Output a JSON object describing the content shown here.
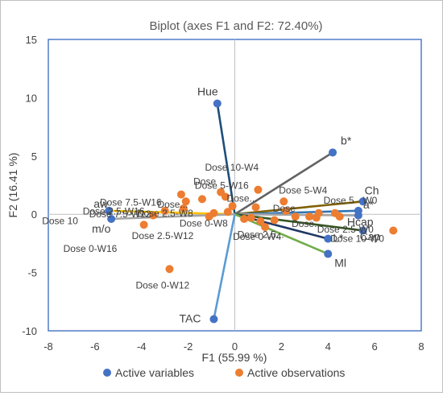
{
  "chart_data": {
    "type": "scatter",
    "title": "Biplot (axes F1 and F2: 72.40%)",
    "xlabel": "F1 (55.99 %)",
    "ylabel": "F2 (16.41 %)",
    "xlim": [
      -8,
      8
    ],
    "ylim": [
      -10,
      15
    ],
    "xticks": [
      -8,
      -6,
      -4,
      -2,
      0,
      2,
      4,
      6,
      8
    ],
    "yticks": [
      -10,
      -5,
      0,
      5,
      10,
      15
    ],
    "legend": {
      "placement": "bottom",
      "entries": [
        "Active variables",
        "Active observations"
      ]
    },
    "colors": {
      "variable_point": "#4472c4",
      "observation_point": "#ed7d31",
      "axis_frame": "#4472c4"
    },
    "variables": [
      {
        "label": "Hue",
        "x": -0.75,
        "y": 9.5,
        "color": "#1f4e79"
      },
      {
        "label": "b*",
        "x": 4.2,
        "y": 5.3,
        "color": "#636363"
      },
      {
        "label": "Ch",
        "x": 5.5,
        "y": 1.1,
        "color": "#7f6000"
      },
      {
        "label": "a*",
        "x": 5.3,
        "y": 0.3,
        "color": "#2e75b6"
      },
      {
        "label": "Hcap",
        "x": 5.3,
        "y": -0.1,
        "color": "#a5a5a5"
      },
      {
        "label": "Cap",
        "x": 5.5,
        "y": -1.4,
        "color": "#375623"
      },
      {
        "label": "L*",
        "x": 4.0,
        "y": -2.1,
        "color": "#203864"
      },
      {
        "label": "Ml",
        "x": 4.0,
        "y": -3.4,
        "color": "#70ad47"
      },
      {
        "label": "TAC",
        "x": -0.9,
        "y": -9.0,
        "color": "#5b9bd5"
      },
      {
        "label": "aw",
        "x": -5.4,
        "y": 0.3,
        "color": "#ffc000"
      },
      {
        "label": "m/o",
        "x": -5.3,
        "y": -0.4,
        "color": "#a5a5a5"
      }
    ],
    "observations": [
      {
        "label": "Dose 7.5-W16",
        "x": -2.3,
        "y": 1.7
      },
      {
        "label": "Dose 2.5-W16",
        "x": -2.1,
        "y": 1.1
      },
      {
        "label": "Dose 10",
        "x": -3.5,
        "y": -0.1
      },
      {
        "label": "Dose 7.5-W12",
        "x": -3.0,
        "y": 0.3
      },
      {
        "label": "Dose 0-W16",
        "x": -3.9,
        "y": -0.9
      },
      {
        "label": "Dose 2.5-W8",
        "x": -2.2,
        "y": 0.5
      },
      {
        "label": "Dose 2.5-W12",
        "x": -1.1,
        "y": -0.2
      },
      {
        "label": "Dose...",
        "x": -0.9,
        "y": 0.1
      },
      {
        "label": "Dose 0-W8",
        "x": -0.3,
        "y": 0.2
      },
      {
        "label": "Dose",
        "x": -0.6,
        "y": 1.9
      },
      {
        "label": "Dose 5-W16",
        "x": -0.4,
        "y": 1.5
      },
      {
        "label": "Dose 10-W4",
        "x": 1.0,
        "y": 2.1
      },
      {
        "label": "Dose...",
        "x": 0.9,
        "y": 0.6
      },
      {
        "label": "Dose 5-W4",
        "x": 2.1,
        "y": 1.1
      },
      {
        "label": "Dose 0-W4",
        "x": 1.3,
        "y": -1.1
      },
      {
        "label": "Dose 2.5...",
        "x": 1.7,
        "y": -0.5
      },
      {
        "label": "Dose",
        "x": 2.6,
        "y": -0.2
      },
      {
        "label": "Dose...",
        "x": 3.2,
        "y": -0.2
      },
      {
        "label": "Dose 5 - W0",
        "x": 3.6,
        "y": 0.1
      },
      {
        "label": "Dose 2.5-W0",
        "x": 4.5,
        "y": -0.2
      },
      {
        "label": "Dose 10-W0",
        "x": 6.8,
        "y": -1.4
      },
      {
        "label": "Dose 0-W12",
        "x": -2.8,
        "y": -4.7
      },
      {
        "label": "",
        "x": -1.4,
        "y": 1.3
      },
      {
        "label": "",
        "x": -0.1,
        "y": 0.7
      },
      {
        "label": "",
        "x": 0.4,
        "y": -0.4
      },
      {
        "label": "",
        "x": 0.7,
        "y": -0.3
      },
      {
        "label": "",
        "x": 1.1,
        "y": -0.6
      },
      {
        "label": "",
        "x": 2.2,
        "y": 0.3
      },
      {
        "label": "",
        "x": 3.5,
        "y": -0.3
      },
      {
        "label": "",
        "x": 4.3,
        "y": 0.1
      }
    ]
  }
}
